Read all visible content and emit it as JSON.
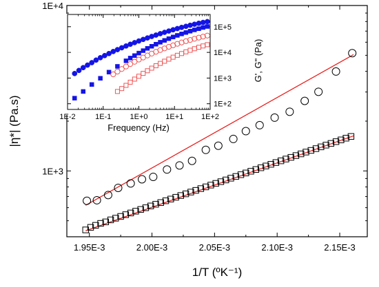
{
  "chart_data": [
    {
      "type": "scatter",
      "title": "",
      "xlabel": "1/T (ºK⁻¹)",
      "ylabel": "|η*| (Pa.s)",
      "x_ticks": [
        "1.95E-3",
        "2.00E-3",
        "2.05E-3",
        "2.10E-3",
        "2.15E-3"
      ],
      "x_tick_values": [
        0.00195,
        0.002,
        0.00205,
        0.0021,
        0.00215
      ],
      "y_ticks": [
        "1E+3",
        "1E+4"
      ],
      "y_tick_values": [
        1000,
        10000
      ],
      "xlim": [
        0.001932,
        0.002172
      ],
      "ylim": [
        400,
        10000
      ],
      "y_scale": "log",
      "grid": false,
      "legend": "none",
      "series": [
        {
          "marker": "open-circle",
          "color": "#000000",
          "x": [
            0.001948,
            0.001956,
            0.001965,
            0.001973,
            0.001983,
            0.001992,
            0.002001,
            0.002012,
            0.002022,
            0.002032,
            0.002043,
            0.002053,
            0.002065,
            0.002075,
            0.002086,
            0.002098,
            0.00211,
            0.002122,
            0.002133,
            0.002147,
            0.00216
          ],
          "y": [
            660,
            665,
            715,
            790,
            840,
            890,
            920,
            1020,
            1080,
            1150,
            1340,
            1420,
            1560,
            1740,
            1890,
            2100,
            2280,
            2650,
            3010,
            3990,
            5150
          ]
        },
        {
          "marker": "open-square",
          "color": "#000000",
          "x": [
            0.001947,
            0.001951,
            0.001955,
            0.001959,
            0.001963,
            0.001967,
            0.001971,
            0.001975,
            0.001979,
            0.001983,
            0.001987,
            0.001991,
            0.001995,
            0.001999,
            0.002003,
            0.002007,
            0.002011,
            0.002015,
            0.002019,
            0.002023,
            0.002027,
            0.002031,
            0.002035,
            0.002039,
            0.002043,
            0.002047,
            0.002051,
            0.002055,
            0.002059,
            0.002063,
            0.002067,
            0.002071,
            0.002075,
            0.002079,
            0.002083,
            0.002087,
            0.002091,
            0.002095,
            0.002099,
            0.002103,
            0.002107,
            0.002111,
            0.002115,
            0.002119,
            0.002123,
            0.002127,
            0.002131,
            0.002135,
            0.002139,
            0.002143,
            0.002147,
            0.002151,
            0.002155,
            0.002159
          ],
          "y": [
            440,
            456,
            469,
            482,
            492,
            506,
            518,
            531,
            544,
            557,
            571,
            585,
            599,
            614,
            629,
            644,
            660,
            676,
            693,
            710,
            727,
            745,
            763,
            782,
            801,
            821,
            841,
            861,
            882,
            904,
            926,
            949,
            972,
            996,
            1020,
            1045,
            1071,
            1097,
            1124,
            1151,
            1180,
            1208,
            1238,
            1268,
            1300,
            1331,
            1364,
            1398,
            1432,
            1467,
            1503,
            1540,
            1578,
            1616
          ]
        },
        {
          "type": "line",
          "color": "#e8211f",
          "x": [
            0.001947,
            0.002161
          ],
          "y": [
            620,
            5050
          ]
        },
        {
          "type": "line",
          "color": "#e8211f",
          "x": [
            0.001947,
            0.002161
          ],
          "y": [
            435,
            1630
          ]
        }
      ]
    },
    {
      "type": "scatter",
      "title": "",
      "xlabel": "Frequency (Hz)",
      "ylabel": "G', G\" (Pa)",
      "x_scale": "log",
      "y_scale": "log",
      "x_ticks": [
        "1E-2",
        "1E-1",
        "1E+0",
        "1E+1",
        "1E+2"
      ],
      "x_tick_values": [
        0.01,
        0.1,
        1,
        10,
        100
      ],
      "y_ticks": [
        "1E+2",
        "1E+3",
        "1E+4",
        "1E+5"
      ],
      "y_tick_values": [
        100,
        1000,
        10000,
        100000
      ],
      "xlim": [
        0.01,
        100
      ],
      "ylim": [
        60,
        300000
      ],
      "grid": false,
      "legend": "none",
      "series": [
        {
          "marker": "filled-circle",
          "color": "#1414e6",
          "x": [
            0.0158,
            0.0209,
            0.0275,
            0.0363,
            0.0479,
            0.0631,
            0.0832,
            0.11,
            0.145,
            0.191,
            0.251,
            0.331,
            0.437,
            0.575,
            0.759,
            1,
            1.32,
            1.74,
            2.29,
            3.02,
            3.98,
            5.25,
            6.92,
            9.12,
            12,
            15.8,
            20.9,
            27.5,
            36.3,
            47.9,
            63.1,
            83.2
          ],
          "y": [
            1500,
            1980,
            2550,
            3200,
            3980,
            5000,
            6200,
            7500,
            9000,
            10800,
            12800,
            15100,
            17700,
            20700,
            24000,
            27800,
            31900,
            36500,
            41600,
            47200,
            53500,
            60300,
            67800,
            75900,
            84600,
            93800,
            103500,
            113800,
            124700,
            136000,
            147000,
            158000
          ]
        },
        {
          "marker": "filled-square",
          "color": "#1414e6",
          "x": [
            0.0158,
            0.0275,
            0.0479,
            0.0832,
            0.145,
            0.251,
            0.437,
            0.575,
            0.759,
            1,
            1.32,
            1.74,
            2.29,
            3.02,
            3.98,
            5.25,
            6.92,
            9.12,
            12,
            15.8,
            20.9,
            27.5,
            36.3,
            47.9,
            63.1,
            83.2
          ],
          "y": [
            165,
            300,
            560,
            980,
            1700,
            2850,
            4700,
            6000,
            7500,
            9400,
            11700,
            14300,
            17300,
            20800,
            24800,
            29300,
            34300,
            39800,
            45800,
            52300,
            59400,
            67000,
            75100,
            83700,
            93000,
            102000
          ]
        },
        {
          "marker": "open-circle",
          "color": "#ee5555",
          "x": [
            0.191,
            0.251,
            0.331,
            0.437,
            0.575,
            0.759,
            1,
            1.32,
            1.74,
            2.29,
            3.02,
            3.98,
            5.25,
            6.92,
            9.12,
            12,
            15.8,
            20.9,
            27.5,
            36.3,
            47.9,
            63.1,
            83.2
          ],
          "y": [
            1400,
            1780,
            2250,
            2810,
            3500,
            4300,
            5250,
            6300,
            7550,
            8950,
            10550,
            12350,
            14300,
            16500,
            18900,
            21500,
            24300,
            27300,
            30500,
            33900,
            37500,
            41200,
            45000
          ]
        },
        {
          "marker": "open-square",
          "color": "#ee5555",
          "x": [
            0.251,
            0.331,
            0.437,
            0.575,
            0.759,
            1,
            1.32,
            1.74,
            2.29,
            3.02,
            3.98,
            5.25,
            6.92,
            9.12,
            12,
            15.8,
            20.9,
            27.5,
            36.3,
            47.9,
            63.1,
            83.2
          ],
          "y": [
            300,
            390,
            520,
            690,
            910,
            1180,
            1520,
            1930,
            2430,
            3020,
            3720,
            4530,
            5450,
            6500,
            7700,
            9000,
            10500,
            12100,
            13900,
            15800,
            17800,
            20000
          ]
        }
      ]
    }
  ]
}
